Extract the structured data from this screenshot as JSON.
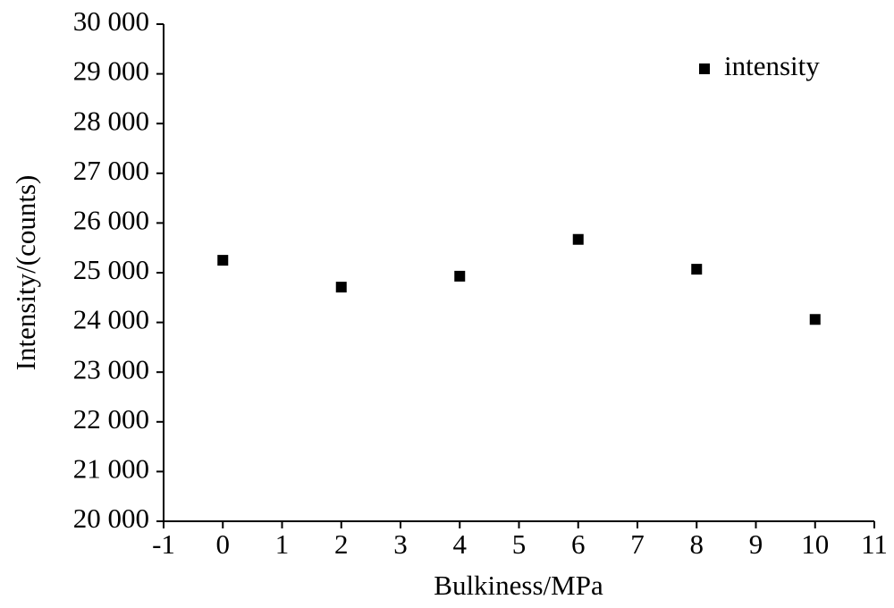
{
  "chart_data": {
    "type": "scatter",
    "x_label": "Bulkiness/MPa",
    "y_label": "Intensity/(counts)",
    "series": [
      {
        "name": "intensity",
        "color": "#000000",
        "x": [
          0,
          2,
          4,
          6,
          8,
          10
        ],
        "values": [
          25250,
          24710,
          24930,
          25670,
          25070,
          24060
        ]
      }
    ],
    "xlim": [
      -1,
      11
    ],
    "xticks": [
      -1,
      0,
      1,
      2,
      3,
      4,
      5,
      6,
      7,
      8,
      9,
      10,
      11
    ],
    "ylim": [
      20000,
      30000
    ],
    "yticks": [
      {
        "value": 20000,
        "label": "20 000"
      },
      {
        "value": 21000,
        "label": "21 000"
      },
      {
        "value": 22000,
        "label": "22 000"
      },
      {
        "value": 23000,
        "label": "23 000"
      },
      {
        "value": 24000,
        "label": "24 000"
      },
      {
        "value": 25000,
        "label": "25 000"
      },
      {
        "value": 26000,
        "label": "26 000"
      },
      {
        "value": 27000,
        "label": "27 000"
      },
      {
        "value": 28000,
        "label": "28 000"
      },
      {
        "value": 29000,
        "label": "29 000"
      },
      {
        "value": 30000,
        "label": "30 000"
      }
    ],
    "grid": false,
    "legend": "upper right"
  }
}
